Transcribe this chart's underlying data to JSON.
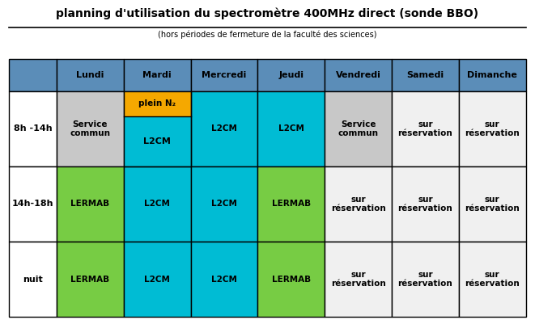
{
  "title": "planning d'utilisation du spectromètre 400MHz direct (sonde BBO)",
  "subtitle": "(hors périodes de fermeture de la faculté des sciences)",
  "header_color": "#5b8db8",
  "row_labels": [
    "8h -14h",
    "14h-18h",
    "nuit"
  ],
  "col_labels": [
    "Lundi",
    "Mardi",
    "Mercredi",
    "Jeudi",
    "Vendredi",
    "Samedi",
    "Dimanche"
  ],
  "colors": {
    "service_commun": "#c8c8c8",
    "lermab": "#77cc44",
    "l2cm": "#00bcd4",
    "reservation": "#f0f0f0",
    "orange": "#f5a800",
    "white": "#ffffff"
  },
  "cells": [
    [
      {
        "label": "Service\ncommun",
        "color": "#c8c8c8",
        "split": false
      },
      {
        "label": "plein N₂|L2CM",
        "color": "#f5a800",
        "split": true,
        "color2": "#00bcd4"
      },
      {
        "label": "L2CM",
        "color": "#00bcd4",
        "split": false
      },
      {
        "label": "L2CM",
        "color": "#00bcd4",
        "split": false
      },
      {
        "label": "Service\ncommun",
        "color": "#c8c8c8",
        "split": false
      },
      {
        "label": "sur\nréservation",
        "color": "#f0f0f0",
        "split": false
      },
      {
        "label": "sur\nréservation",
        "color": "#f0f0f0",
        "split": false
      }
    ],
    [
      {
        "label": "LERMAB",
        "color": "#77cc44",
        "split": false
      },
      {
        "label": "L2CM",
        "color": "#00bcd4",
        "split": false
      },
      {
        "label": "L2CM",
        "color": "#00bcd4",
        "split": false
      },
      {
        "label": "LERMAB",
        "color": "#77cc44",
        "split": false
      },
      {
        "label": "sur\nréservation",
        "color": "#f0f0f0",
        "split": false
      },
      {
        "label": "sur\nréservation",
        "color": "#f0f0f0",
        "split": false
      },
      {
        "label": "sur\nréservation",
        "color": "#f0f0f0",
        "split": false
      }
    ],
    [
      {
        "label": "LERMAB",
        "color": "#77cc44",
        "split": false
      },
      {
        "label": "L2CM",
        "color": "#00bcd4",
        "split": false
      },
      {
        "label": "L2CM",
        "color": "#00bcd4",
        "split": false
      },
      {
        "label": "LERMAB",
        "color": "#77cc44",
        "split": false
      },
      {
        "label": "sur\nréservation",
        "color": "#f0f0f0",
        "split": false
      },
      {
        "label": "sur\nréservation",
        "color": "#f0f0f0",
        "split": false
      },
      {
        "label": "sur\nréservation",
        "color": "#f0f0f0",
        "split": false
      }
    ]
  ]
}
